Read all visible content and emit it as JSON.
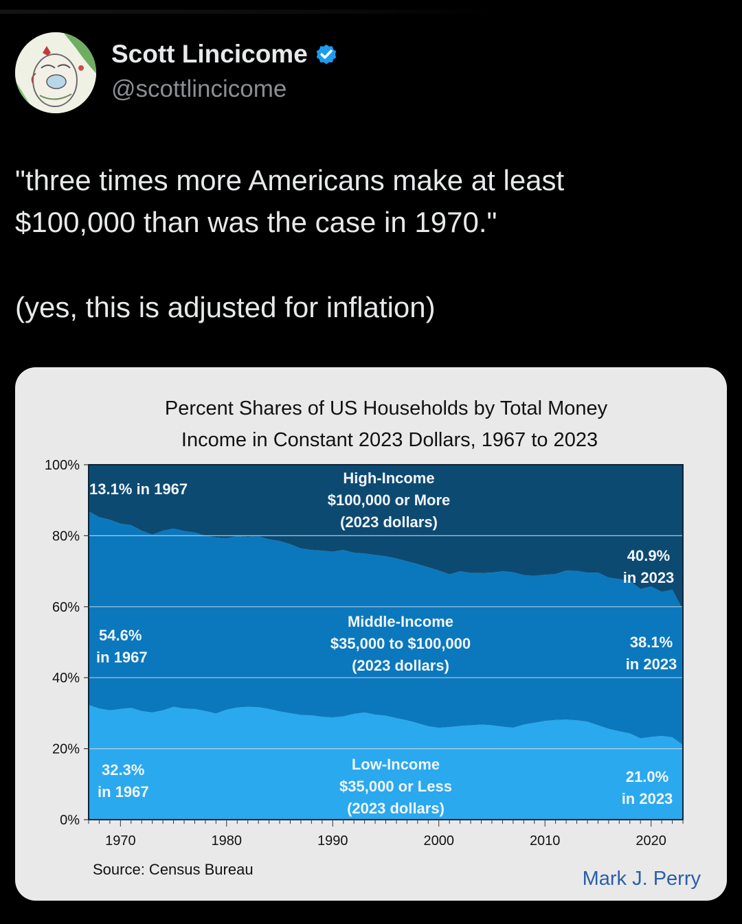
{
  "tweet": {
    "author_name": "Scott Lincicome",
    "author_handle": "@scottlincicome",
    "verified": true,
    "text_line1": "\"three times more Americans make at least",
    "text_line2": "$100,000 than was the case in 1970.\"",
    "text_line3": "(yes, this is adjusted for inflation)"
  },
  "icons": {
    "verified_badge": "verified-badge-icon",
    "avatar": "avatar-drawing"
  },
  "colors": {
    "background": "#000000",
    "card": "#e9e9ea",
    "high_income": "#0d4a72",
    "middle_income": "#0b78bd",
    "low_income": "#2aa9ee",
    "verified": "#1d9bf0",
    "author_credit": "#2b5ea8"
  },
  "chart_data": {
    "type": "area",
    "stacked": true,
    "title_line1": "Percent Shares of US Households by Total Money",
    "title_line2": "Income in Constant 2023 Dollars, 1967 to 2023",
    "xlabel": "",
    "ylabel": "",
    "xlim": [
      1967,
      2023
    ],
    "ylim": [
      0,
      100
    ],
    "x_ticks": [
      "1970",
      "1980",
      "1990",
      "2000",
      "2010",
      "2020"
    ],
    "y_ticks": [
      "0%",
      "20%",
      "40%",
      "60%",
      "80%",
      "100%"
    ],
    "grid": true,
    "source": "Source: Census Bureau",
    "author": "Mark J. Perry",
    "x": [
      1967,
      1968,
      1969,
      1970,
      1971,
      1972,
      1973,
      1974,
      1975,
      1976,
      1977,
      1978,
      1979,
      1980,
      1981,
      1982,
      1983,
      1984,
      1985,
      1986,
      1987,
      1988,
      1989,
      1990,
      1991,
      1992,
      1993,
      1994,
      1995,
      1996,
      1997,
      1998,
      1999,
      2000,
      2001,
      2002,
      2003,
      2004,
      2005,
      2006,
      2007,
      2008,
      2009,
      2010,
      2011,
      2012,
      2013,
      2014,
      2015,
      2016,
      2017,
      2018,
      2019,
      2020,
      2021,
      2022,
      2023
    ],
    "series": [
      {
        "name": "Low-Income",
        "values": [
          32.3,
          31.3,
          30.8,
          31.2,
          31.5,
          30.6,
          30.2,
          30.8,
          31.8,
          31.3,
          31.2,
          30.6,
          29.9,
          31.0,
          31.6,
          31.8,
          31.7,
          31.2,
          30.5,
          30.0,
          29.5,
          29.4,
          29.0,
          28.8,
          29.1,
          29.8,
          30.2,
          29.6,
          29.3,
          28.6,
          28.0,
          27.2,
          26.3,
          25.9,
          26.1,
          26.4,
          26.6,
          26.8,
          26.6,
          26.2,
          25.9,
          26.8,
          27.3,
          27.8,
          28.1,
          28.2,
          28.0,
          27.6,
          26.6,
          25.6,
          24.9,
          24.3,
          22.9,
          23.3,
          23.6,
          23.2,
          21.0
        ]
      },
      {
        "name": "Middle-Income",
        "values": [
          54.6,
          53.9,
          53.7,
          52.2,
          51.5,
          50.8,
          50.1,
          50.6,
          50.2,
          50.0,
          49.7,
          49.4,
          49.6,
          48.3,
          48.3,
          47.9,
          48.1,
          47.8,
          48.0,
          47.6,
          46.9,
          46.6,
          46.8,
          46.7,
          46.9,
          45.4,
          44.8,
          45.0,
          44.9,
          45.0,
          44.8,
          44.8,
          44.8,
          44.3,
          43.0,
          43.6,
          42.9,
          42.7,
          43.0,
          43.8,
          43.8,
          42.1,
          41.4,
          41.2,
          41.1,
          42.0,
          42.1,
          42.0,
          43.0,
          42.6,
          42.9,
          43.0,
          42.1,
          42.4,
          40.6,
          41.6,
          38.1
        ]
      },
      {
        "name": "High-Income",
        "values": [
          13.1,
          14.8,
          15.5,
          16.6,
          17.0,
          18.6,
          19.7,
          18.6,
          18.0,
          18.7,
          19.1,
          20.0,
          20.5,
          20.7,
          20.1,
          20.3,
          20.2,
          21.0,
          21.5,
          22.4,
          23.6,
          24.0,
          24.2,
          24.5,
          24.0,
          24.8,
          25.0,
          25.4,
          25.8,
          26.4,
          27.2,
          28.0,
          28.9,
          29.8,
          30.9,
          30.0,
          30.5,
          30.5,
          30.4,
          30.0,
          30.3,
          31.1,
          31.3,
          31.0,
          30.8,
          29.8,
          29.9,
          30.4,
          30.4,
          31.8,
          32.2,
          32.7,
          35.0,
          34.3,
          35.8,
          35.2,
          40.9
        ]
      }
    ],
    "category_labels": [
      {
        "line1": "High-Income",
        "line2": "$100,000 or More",
        "line3": "(2023 dollars)"
      },
      {
        "line1": "Middle-Income",
        "line2": "$35,000 to $100,000",
        "line3": "(2023 dollars)"
      },
      {
        "line1": "Low-Income",
        "line2": "$35,000 or Less",
        "line3": "(2023 dollars)"
      }
    ],
    "annotations": {
      "high_1967": "13.1% in 1967",
      "high_2023_a": "40.9%",
      "high_2023_b": "in 2023",
      "mid_1967_a": "54.6%",
      "mid_1967_b": "in 1967",
      "mid_2023_a": "38.1%",
      "mid_2023_b": "in 2023",
      "low_1967_a": "32.3%",
      "low_1967_b": "in 1967",
      "low_2023_a": "21.0%",
      "low_2023_b": "in 2023"
    }
  }
}
